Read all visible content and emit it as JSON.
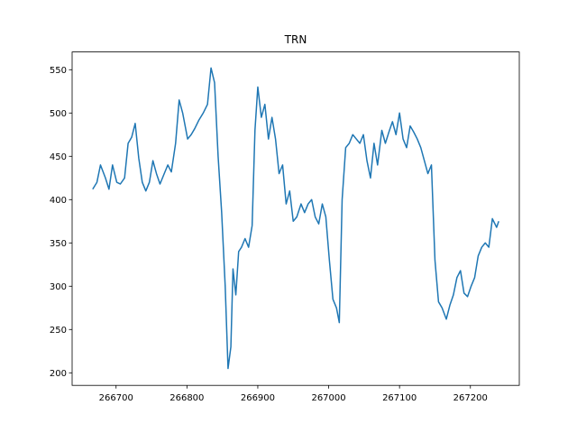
{
  "chart_data": {
    "type": "line",
    "title": "TRN",
    "x": [
      266667,
      266673,
      266678,
      266685,
      266690,
      266695,
      266701,
      266706,
      266712,
      266717,
      266722,
      266727,
      266732,
      266737,
      266742,
      266747,
      266752,
      266757,
      266762,
      266767,
      266773,
      266778,
      266784,
      266789,
      266794,
      266801,
      266806,
      266811,
      266817,
      266823,
      266829,
      266834,
      266839,
      266844,
      266849,
      266854,
      266858,
      266862,
      266865,
      266869,
      266873,
      266877,
      266882,
      266887,
      266892,
      266896,
      266900,
      266905,
      266910,
      266915,
      266920,
      266925,
      266930,
      266935,
      266940,
      266945,
      266950,
      266955,
      266961,
      266966,
      266971,
      266976,
      266981,
      266986,
      266991,
      266996,
      267001,
      267006,
      267011,
      267015,
      267019,
      267024,
      267029,
      267034,
      267039,
      267044,
      267049,
      267054,
      267059,
      267064,
      267069,
      267075,
      267080,
      267085,
      267090,
      267095,
      267100,
      267105,
      267110,
      267115,
      267120,
      267125,
      267130,
      267135,
      267140,
      267145,
      267150,
      267155,
      267160,
      267166,
      267171,
      267176,
      267181,
      267186,
      267191,
      267196,
      267201,
      267206,
      267211,
      267216,
      267221,
      267226,
      267231,
      267237,
      267240
    ],
    "series": [
      {
        "name": "TRN",
        "color": "#1f77b4",
        "values": [
          412,
          420,
          440,
          425,
          412,
          440,
          420,
          418,
          425,
          465,
          472,
          488,
          448,
          420,
          410,
          420,
          445,
          430,
          418,
          428,
          440,
          432,
          465,
          515,
          500,
          470,
          475,
          482,
          492,
          500,
          510,
          552,
          535,
          450,
          385,
          300,
          205,
          230,
          320,
          290,
          340,
          345,
          355,
          345,
          370,
          480,
          530,
          495,
          510,
          470,
          495,
          470,
          430,
          440,
          395,
          410,
          375,
          380,
          395,
          385,
          395,
          400,
          380,
          372,
          395,
          380,
          330,
          285,
          275,
          258,
          400,
          460,
          465,
          475,
          470,
          465,
          475,
          445,
          425,
          465,
          440,
          480,
          465,
          478,
          490,
          475,
          500,
          470,
          460,
          485,
          478,
          470,
          460,
          445,
          430,
          440,
          330,
          282,
          275,
          262,
          278,
          290,
          310,
          318,
          292,
          288,
          300,
          310,
          335,
          345,
          350,
          345,
          378,
          368,
          375
        ]
      }
    ],
    "xlim": [
      266638,
      267269
    ],
    "ylim": [
      185.5,
      570.5
    ],
    "xticks": [
      266700,
      266800,
      266900,
      267000,
      267100,
      267200
    ],
    "yticks": [
      200,
      250,
      300,
      350,
      400,
      450,
      500,
      550
    ]
  }
}
